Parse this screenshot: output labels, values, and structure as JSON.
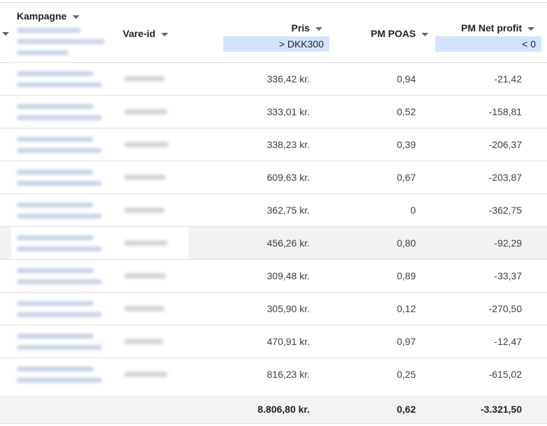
{
  "header": {
    "kampagne": "Kampagne",
    "vare_id": "Vare-id",
    "pris": "Pris",
    "pris_filter": "> DKK300",
    "poas": "PM POAS",
    "net_profit": "PM Net profit",
    "net_profit_filter": "< 0"
  },
  "rows": [
    {
      "pris": "336,42 kr.",
      "poas": "0,94",
      "net": "-21,42"
    },
    {
      "pris": "333,01 kr.",
      "poas": "0,52",
      "net": "-158,81"
    },
    {
      "pris": "338,23 kr.",
      "poas": "0,39",
      "net": "-206,37"
    },
    {
      "pris": "609,63 kr.",
      "poas": "0,67",
      "net": "-203,87"
    },
    {
      "pris": "362,75 kr.",
      "poas": "0",
      "net": "-362,75"
    },
    {
      "pris": "456,26 kr.",
      "poas": "0,80",
      "net": "-92,29"
    },
    {
      "pris": "309,48 kr.",
      "poas": "0,89",
      "net": "-33,37"
    },
    {
      "pris": "305,90 kr.",
      "poas": "0,12",
      "net": "-270,50"
    },
    {
      "pris": "470,91 kr.",
      "poas": "0,97",
      "net": "-12,47"
    },
    {
      "pris": "816,23 kr.",
      "poas": "0,25",
      "net": "-615,02"
    }
  ],
  "totals": {
    "pris": "8.806,80 kr.",
    "poas": "0,62",
    "net": "-3.321,50"
  },
  "colors": {
    "filter_chip": "#d2e3fc",
    "highlight_row": "#f2f2f2",
    "total_row": "#f1f3f4"
  }
}
